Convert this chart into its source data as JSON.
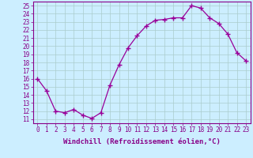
{
  "x": [
    0,
    1,
    2,
    3,
    4,
    5,
    6,
    7,
    8,
    9,
    10,
    11,
    12,
    13,
    14,
    15,
    16,
    17,
    18,
    19,
    20,
    21,
    22,
    23
  ],
  "y": [
    16,
    14.5,
    12,
    11.8,
    12.2,
    11.5,
    11.1,
    11.8,
    15.2,
    17.7,
    19.8,
    21.3,
    22.5,
    23.2,
    23.3,
    23.5,
    23.5,
    25.0,
    24.7,
    23.5,
    22.8,
    21.5,
    19.2,
    18.2
  ],
  "line_color": "#990099",
  "marker": "+",
  "bg_color": "#cceeff",
  "grid_color": "#aacccc",
  "xlabel": "Windchill (Refroidissement éolien,°C)",
  "xlim": [
    -0.5,
    23.5
  ],
  "ylim": [
    10.5,
    25.5
  ],
  "yticks": [
    11,
    12,
    13,
    14,
    15,
    16,
    17,
    18,
    19,
    20,
    21,
    22,
    23,
    24,
    25
  ],
  "xticks": [
    0,
    1,
    2,
    3,
    4,
    5,
    6,
    7,
    8,
    9,
    10,
    11,
    12,
    13,
    14,
    15,
    16,
    17,
    18,
    19,
    20,
    21,
    22,
    23
  ],
  "tick_color": "#880088",
  "label_color": "#880088",
  "axis_color": "#880088",
  "font_size_ticks": 5.5,
  "font_size_label": 6.5
}
